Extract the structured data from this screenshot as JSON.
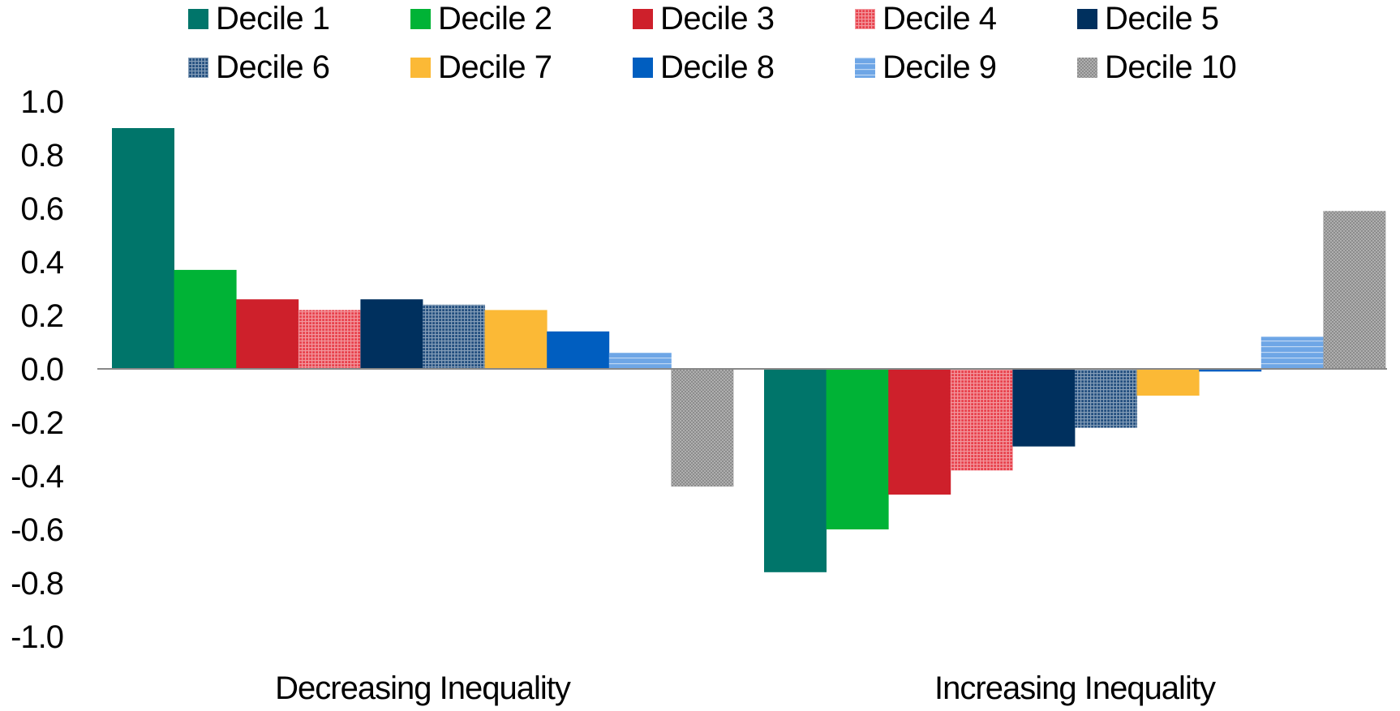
{
  "chart_data": {
    "type": "bar",
    "categories": [
      "Decreasing Inequality",
      "Increasing Inequality"
    ],
    "series": [
      {
        "name": "Decile 1",
        "values": [
          0.9,
          -0.76
        ],
        "color": "#00756A",
        "pattern": "solid"
      },
      {
        "name": "Decile 2",
        "values": [
          0.37,
          -0.6
        ],
        "color": "#00B336",
        "pattern": "solid"
      },
      {
        "name": "Decile 3",
        "values": [
          0.26,
          -0.47
        ],
        "color": "#CE202B",
        "pattern": "solid"
      },
      {
        "name": "Decile 4",
        "values": [
          0.22,
          -0.38
        ],
        "color": "#E8414C",
        "pattern": "dense-grid"
      },
      {
        "name": "Decile 5",
        "values": [
          0.26,
          -0.29
        ],
        "color": "#00305E",
        "pattern": "solid"
      },
      {
        "name": "Decile 6",
        "values": [
          0.24,
          -0.22
        ],
        "color": "#224E7E",
        "pattern": "dense-grid"
      },
      {
        "name": "Decile 7",
        "values": [
          0.22,
          -0.1
        ],
        "color": "#FBB936",
        "pattern": "solid"
      },
      {
        "name": "Decile 8",
        "values": [
          0.14,
          -0.01
        ],
        "color": "#005EC0",
        "pattern": "solid"
      },
      {
        "name": "Decile 9",
        "values": [
          0.06,
          0.12
        ],
        "color": "#6EA6E6",
        "pattern": "horizontal-lines"
      },
      {
        "name": "Decile 10",
        "values": [
          -0.44,
          0.59
        ],
        "color": "#8C8C8C",
        "pattern": "cross-hatch"
      }
    ],
    "ylim": [
      -1.0,
      1.0
    ],
    "yticks": [
      "1.0",
      "0.8",
      "0.6",
      "0.4",
      "0.2",
      "0.0",
      "-0.2",
      "-0.4",
      "-0.6",
      "-0.8",
      "-1.0"
    ],
    "title": "",
    "xlabel": "",
    "ylabel": "",
    "legend_position": "top",
    "grid": false
  }
}
